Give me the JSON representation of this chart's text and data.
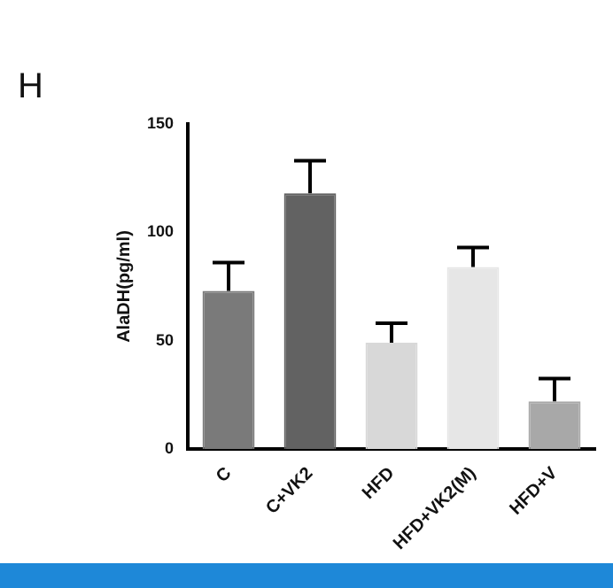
{
  "chart_data": {
    "type": "bar",
    "title": "H",
    "ylabel": "AlaDH(pg/ml)",
    "categories": [
      "C",
      "C+VK2",
      "HFD",
      "HFD+VK2(M)",
      "HFD+V"
    ],
    "values": [
      73,
      118,
      49,
      84,
      22
    ],
    "colors": [
      "#7a7a7a",
      "#626262",
      "#d8d8d8",
      "#e6e6e6",
      "#a8a8a8"
    ],
    "errors": [
      [
        73,
        86
      ],
      [
        118,
        133
      ],
      [
        49,
        58
      ],
      [
        84,
        93
      ],
      [
        22,
        32.5
      ]
    ],
    "ylim": [
      0,
      150
    ],
    "yticks": [
      0,
      50,
      100,
      150
    ],
    "grid": false
  }
}
